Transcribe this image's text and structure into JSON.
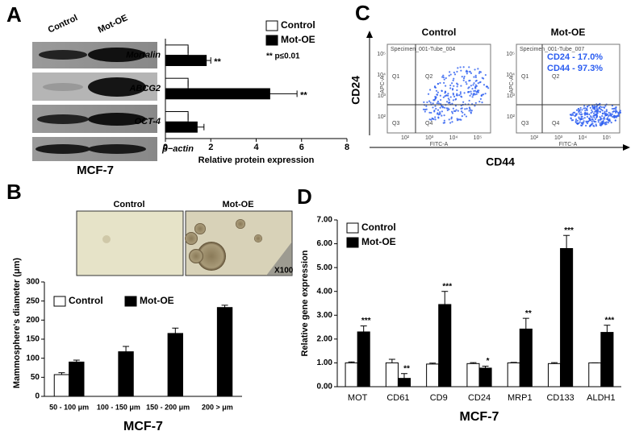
{
  "panel_labels": [
    "A",
    "B",
    "C",
    "D"
  ],
  "blot": {
    "columns": [
      "Control",
      "Mot-OE"
    ],
    "loading_control": "β−actin",
    "caption": "MCF-7"
  },
  "spheres": {
    "labels": [
      "Control",
      "Mot-OE"
    ],
    "magnification": "X100"
  },
  "flow": {
    "y_label": "CD24",
    "x_label": "CD44",
    "color": "#2a5cf0",
    "axis_names": [
      "APC-A",
      "FITC-A"
    ],
    "ticks": [
      "10²",
      "10³",
      "10⁴",
      "10⁵"
    ],
    "plots": [
      {
        "title": "Control",
        "specimen": "Specimen_001-Tube_004",
        "quadrants": [
          "Q1",
          "Q2",
          "Q3",
          "Q4"
        ]
      },
      {
        "title": "Mot-OE",
        "specimen": "Specimen_001-Tube_007",
        "quadrants": [
          "Q1",
          "Q2",
          "Q3",
          "Q4"
        ],
        "annotations": [
          "CD24 - 17.0%",
          "CD44 - 97.3%"
        ]
      }
    ]
  },
  "chart_data": [
    {
      "type": "bar",
      "orientation": "horizontal",
      "categories": [
        "Mortalin",
        "ABCG2",
        "OCT-4"
      ],
      "xlabel": "Relative protein expression",
      "xlim": [
        0,
        8
      ],
      "xticks": [
        0,
        2,
        4,
        6,
        8
      ],
      "legend": "upper right",
      "note": "** p≤0.01",
      "series": [
        {
          "name": "Control",
          "color": "#ffffff",
          "values": [
            1,
            1,
            1
          ],
          "errors": [
            0,
            0,
            0
          ]
        },
        {
          "name": "Mot-OE",
          "color": "#000000",
          "values": [
            1.8,
            4.6,
            1.4
          ],
          "errors": [
            0.2,
            1.2,
            0.3
          ],
          "significance": [
            "**",
            "**",
            null
          ]
        }
      ]
    },
    {
      "type": "bar",
      "orientation": "vertical",
      "categories": [
        "50 - 100 μm",
        "100 - 150 μm",
        "150 - 200 μm",
        "200 > μm"
      ],
      "xlabel": "MCF-7",
      "ylabel": "Mammosphere's diameter (μm)",
      "ylim": [
        0,
        300
      ],
      "yticks": [
        0,
        50,
        100,
        150,
        200,
        250,
        300
      ],
      "legend": "upper left",
      "series": [
        {
          "name": "Control",
          "color": "#ffffff",
          "values": [
            57,
            0,
            0,
            0
          ],
          "errors": [
            5,
            0,
            0,
            0
          ]
        },
        {
          "name": "Mot-OE",
          "color": "#000000",
          "values": [
            90,
            117,
            165,
            233
          ],
          "errors": [
            5,
            14,
            14,
            6
          ]
        }
      ]
    },
    {
      "type": "bar",
      "orientation": "vertical",
      "categories": [
        "MOT",
        "CD61",
        "CD9",
        "CD24",
        "MRP1",
        "CD133",
        "ALDH1"
      ],
      "xlabel": "MCF-7",
      "ylabel": "Relative gene expression",
      "ylim": [
        0,
        7
      ],
      "yticks": [
        {
          "value": 0,
          "label": "0.00"
        },
        {
          "value": 1,
          "label": "1.00"
        },
        {
          "value": 2,
          "label": "2.00"
        },
        {
          "value": 3,
          "label": "3.00"
        },
        {
          "value": 4,
          "label": "4.00"
        },
        {
          "value": 5,
          "label": "5.00"
        },
        {
          "value": 6,
          "label": "6.00"
        },
        {
          "value": 7,
          "label": "7.00"
        }
      ],
      "legend": "upper left",
      "series": [
        {
          "name": "Control",
          "color": "#ffffff",
          "values": [
            1.0,
            1.0,
            0.95,
            0.97,
            1.0,
            0.97,
            1.0
          ],
          "errors": [
            0.04,
            0.15,
            0.04,
            0.04,
            0.02,
            0.04,
            0
          ]
        },
        {
          "name": "Mot-OE",
          "color": "#000000",
          "values": [
            2.3,
            0.35,
            3.45,
            0.78,
            2.42,
            5.8,
            2.28
          ],
          "errors": [
            0.25,
            0.2,
            0.55,
            0.08,
            0.45,
            0.55,
            0.3
          ],
          "significance": [
            "***",
            "**",
            "***",
            "*",
            "**",
            "***",
            "***"
          ]
        }
      ]
    }
  ]
}
